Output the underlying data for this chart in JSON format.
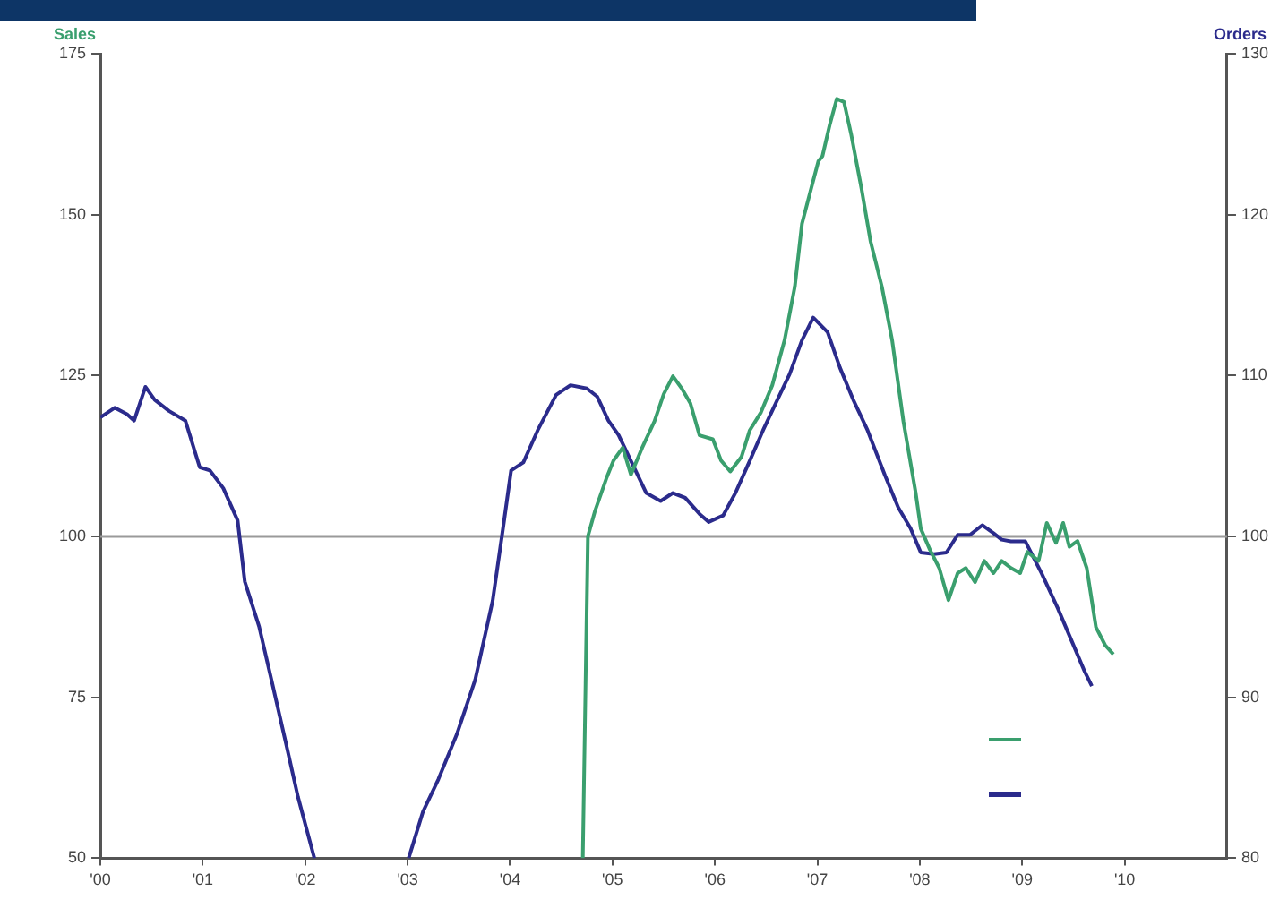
{
  "chart_data": {
    "type": "line",
    "ylabel": "Sales",
    "y2label": "Orders",
    "xlim": [
      2000,
      2011
    ],
    "xticks": [
      {
        "value": 2000,
        "label": "'00"
      },
      {
        "value": 2001,
        "label": "'01"
      },
      {
        "value": 2002,
        "label": "'02"
      },
      {
        "value": 2003,
        "label": "'03"
      },
      {
        "value": 2004,
        "label": "'04"
      },
      {
        "value": 2005,
        "label": "'05"
      },
      {
        "value": 2006,
        "label": "'06"
      },
      {
        "value": 2007,
        "label": "'07"
      },
      {
        "value": 2008,
        "label": "'08"
      },
      {
        "value": 2009,
        "label": "'09"
      },
      {
        "value": 2010,
        "label": "'10"
      }
    ],
    "ylim": [
      50,
      175
    ],
    "yticks": [
      50,
      75,
      100,
      125,
      150,
      175
    ],
    "y2lim": [
      80,
      130
    ],
    "y2ticks": [
      80,
      90,
      100,
      110,
      120,
      130
    ],
    "ref_lines": [
      {
        "axis": "y",
        "value": 100,
        "color": "#9a9a9a"
      }
    ],
    "grid": false,
    "legend": false,
    "marker": "none",
    "line_style": "solid",
    "series": [
      {
        "color": "#3a9f6e",
        "x": [
          2004.71,
          2004.76,
          2004.83,
          2004.94,
          2005.01,
          2005.1,
          2005.18,
          2005.29,
          2005.41,
          2005.5,
          2005.59,
          2005.68,
          2005.76,
          2005.85,
          2005.98,
          2006.06,
          2006.15,
          2006.26,
          2006.34,
          2006.45,
          2006.56,
          2006.68,
          2006.78,
          2006.85,
          2006.94,
          2007.01,
          2007.05,
          2007.12,
          2007.19,
          2007.26,
          2007.33,
          2007.43,
          2007.52,
          2007.63,
          2007.73,
          2007.84,
          2007.96,
          2008.01,
          2008.1,
          2008.19,
          2008.28,
          2008.37,
          2008.45,
          2008.54,
          2008.63,
          2008.72,
          2008.8,
          2008.89,
          2008.98,
          2009.05,
          2009.16,
          2009.24,
          2009.33,
          2009.4,
          2009.46,
          2009.54,
          2009.63,
          2009.72,
          2009.81,
          2009.89
        ],
        "values": [
          50,
          100,
          104,
          109,
          111.8,
          113.8,
          109.6,
          113.8,
          117.9,
          122.1,
          124.9,
          122.9,
          120.7,
          115.7,
          115.1,
          111.8,
          110.1,
          112.4,
          116.5,
          119.3,
          123.5,
          130.5,
          138.8,
          148.6,
          154.1,
          158.3,
          159.1,
          163.9,
          168,
          167.5,
          162.5,
          154.1,
          145.8,
          138.8,
          130.5,
          117.9,
          106.8,
          101.2,
          97.9,
          95.1,
          90.1,
          94.3,
          95.1,
          92.9,
          96.2,
          94.3,
          96.2,
          95.1,
          94.3,
          97.6,
          96.2,
          102.1,
          99,
          102.1,
          98.4,
          99.3,
          95.1,
          85.9,
          83.1,
          81.7
        ]
      },
      {
        "color": "#2b2b8c",
        "axis": "y2",
        "x": [
          2000,
          2000.14,
          2000.26,
          2000.33,
          2000.44,
          2000.53,
          2000.67,
          2000.83,
          2000.97,
          2001.07,
          2001.2,
          2001.34,
          2001.41,
          2001.55,
          2001.67,
          2001.81,
          2001.93,
          2002.09,
          2002.5,
          2003.01,
          2003.15,
          2003.3,
          2003.48,
          2003.66,
          2003.83,
          2003.94,
          2004.01,
          2004.13,
          2004.27,
          2004.45,
          2004.59,
          2004.75,
          2004.85,
          2004.96,
          2005.06,
          2005.18,
          2005.33,
          2005.47,
          2005.59,
          2005.71,
          2005.85,
          2005.94,
          2006.08,
          2006.2,
          2006.34,
          2006.47,
          2006.61,
          2006.73,
          2006.85,
          2006.96,
          2007.1,
          2007.22,
          2007.35,
          2007.49,
          2007.66,
          2007.79,
          2007.91,
          2008.01,
          2008.14,
          2008.26,
          2008.37,
          2008.49,
          2008.61,
          2008.72,
          2008.8,
          2008.89,
          2009.03,
          2009.19,
          2009.35,
          2009.49,
          2009.61,
          2009.68
        ],
        "values": [
          107.4,
          108,
          107.6,
          107.2,
          109.3,
          108.5,
          107.8,
          107.2,
          104.3,
          104.1,
          103,
          101,
          97.2,
          94.4,
          91.1,
          87.2,
          83.8,
          80,
          null,
          80,
          82.9,
          84.9,
          87.7,
          91.1,
          96,
          100.9,
          104.1,
          104.6,
          106.6,
          108.8,
          109.4,
          109.2,
          108.7,
          107.2,
          106.3,
          104.7,
          102.7,
          102.2,
          102.7,
          102.4,
          101.4,
          100.9,
          101.3,
          102.7,
          104.7,
          106.6,
          108.5,
          110.1,
          112.2,
          113.6,
          112.7,
          110.5,
          108.5,
          106.6,
          103.8,
          101.8,
          100.5,
          99,
          98.9,
          99,
          100.1,
          100.1,
          100.7,
          100.2,
          99.8,
          99.7,
          99.7,
          97.7,
          95.5,
          93.4,
          91.6,
          90.7
        ]
      }
    ]
  }
}
